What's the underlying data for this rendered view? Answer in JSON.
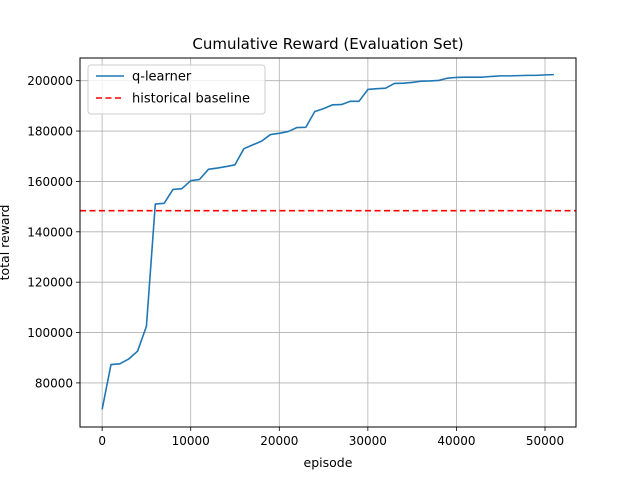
{
  "chart_data": {
    "type": "line",
    "title": "Cumulative Reward (Evaluation Set)",
    "xlabel": "episode",
    "ylabel": "total reward",
    "xlim": [
      -2500,
      53500
    ],
    "ylim": [
      62500,
      209000
    ],
    "xticks": [
      0,
      10000,
      20000,
      30000,
      40000,
      50000
    ],
    "yticks": [
      80000,
      100000,
      120000,
      140000,
      160000,
      180000,
      200000
    ],
    "grid": true,
    "legend_position": "upper-left",
    "series": [
      {
        "name": "q-learner",
        "color": "#1f77b4",
        "style": "solid",
        "x": [
          0,
          1000,
          2000,
          3000,
          4000,
          5000,
          6000,
          7000,
          8000,
          9000,
          10000,
          11000,
          12000,
          13000,
          14000,
          15000,
          16000,
          17000,
          18000,
          19000,
          20000,
          21000,
          22000,
          23000,
          24000,
          25000,
          26000,
          27000,
          28000,
          29000,
          30000,
          31000,
          32000,
          33000,
          34000,
          35000,
          36000,
          37000,
          38000,
          39000,
          40000,
          41000,
          42000,
          43000,
          44000,
          45000,
          46000,
          47000,
          48000,
          49000,
          50000,
          51000
        ],
        "y": [
          69500,
          87300,
          87600,
          89500,
          92600,
          102500,
          151000,
          151300,
          156800,
          157100,
          160300,
          160800,
          164800,
          165300,
          165900,
          166600,
          173000,
          174500,
          176000,
          178600,
          179100,
          179800,
          181400,
          181500,
          187700,
          188900,
          190400,
          190500,
          191800,
          191800,
          196500,
          196800,
          197000,
          198900,
          199000,
          199300,
          199800,
          199900,
          200100,
          201000,
          201300,
          201400,
          201400,
          201400,
          201700,
          201900,
          201900,
          202000,
          202100,
          202100,
          202300,
          202400
        ]
      },
      {
        "name": "historical baseline",
        "color": "#ff0000",
        "style": "dashed",
        "y": 148400
      }
    ]
  }
}
